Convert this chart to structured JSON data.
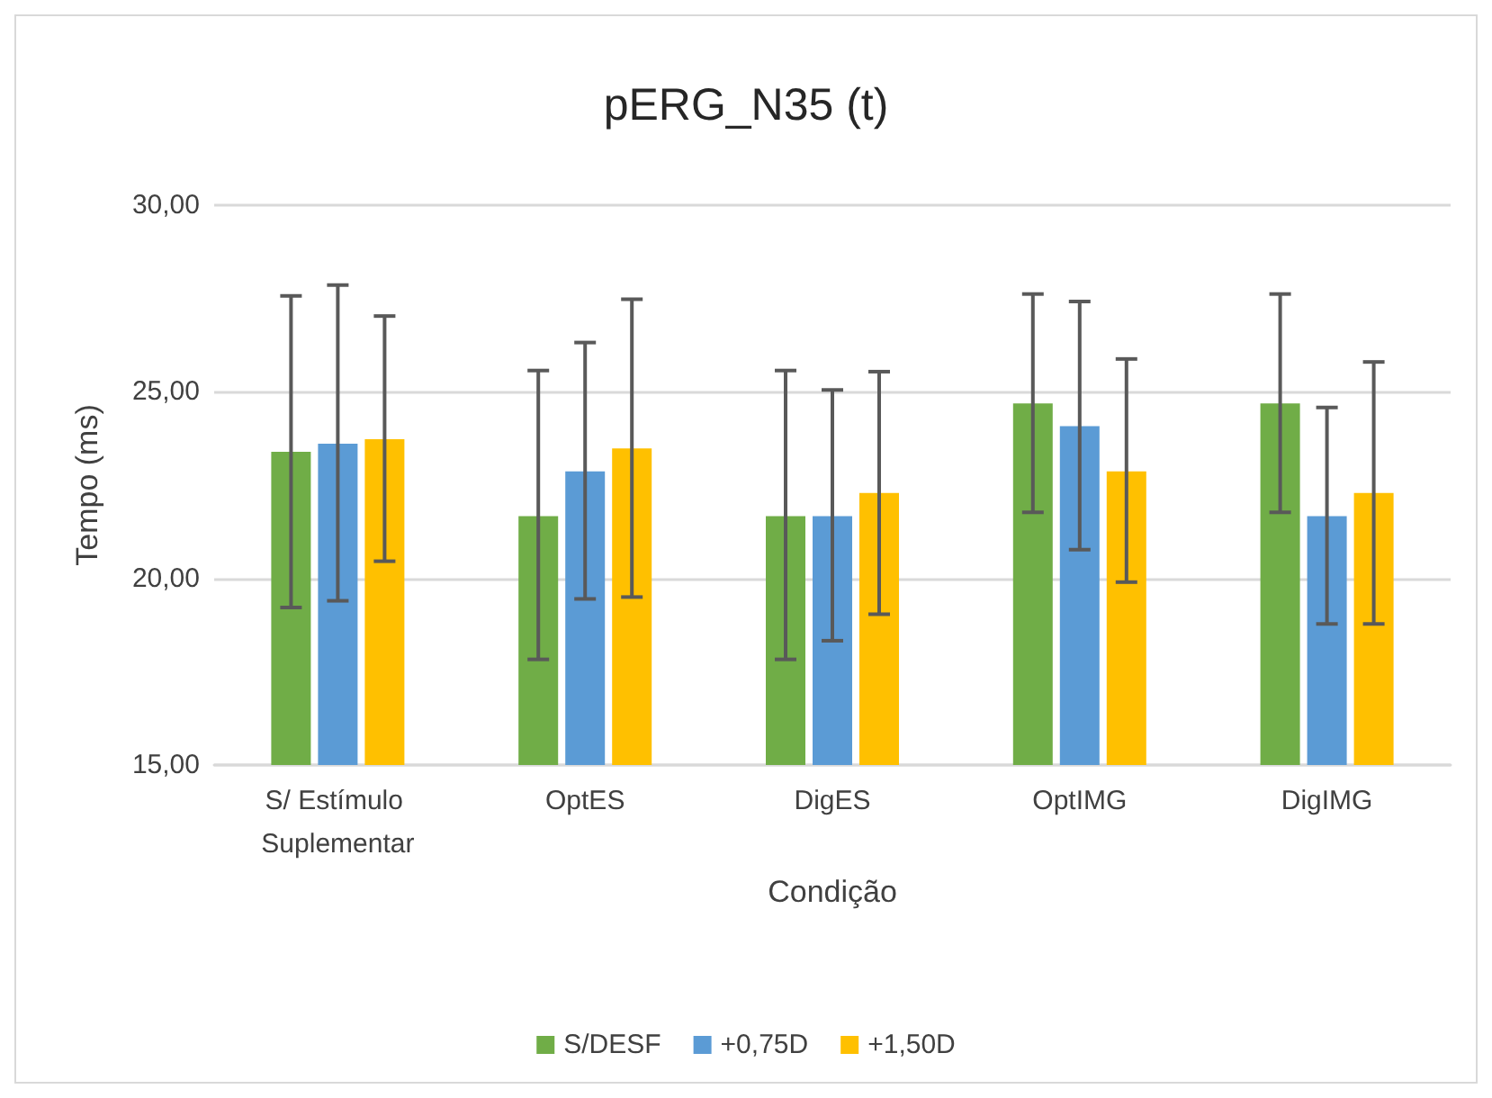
{
  "chart_data": {
    "type": "bar",
    "title": "pERG_N35 (t)",
    "xlabel": "Condição",
    "ylabel": "Tempo (ms)",
    "categories": [
      "S/ Estímulo Suplementar",
      "OptES",
      "DigES",
      "OptIMG",
      "DigIMG"
    ],
    "series": [
      {
        "name": "S/DESF",
        "color": "#70ad47",
        "values": [
          23.39,
          21.67,
          21.67,
          24.69,
          24.69
        ],
        "errors": [
          [
            19.22,
            27.57
          ],
          [
            17.83,
            25.57
          ],
          [
            17.83,
            25.57
          ],
          [
            21.77,
            27.62
          ],
          [
            21.77,
            27.62
          ]
        ]
      },
      {
        "name": "+0,75D",
        "color": "#5b9bd5",
        "values": [
          23.61,
          22.87,
          21.67,
          24.08,
          21.67
        ],
        "errors": [
          [
            19.4,
            27.86
          ],
          [
            19.45,
            26.32
          ],
          [
            18.33,
            25.05
          ],
          [
            20.77,
            27.42
          ],
          [
            18.78,
            24.58
          ]
        ]
      },
      {
        "name": "+1,50D",
        "color": "#ffc000",
        "values": [
          23.73,
          23.48,
          22.29,
          22.87,
          22.29
        ],
        "errors": [
          [
            20.46,
            27.03
          ],
          [
            19.5,
            27.48
          ],
          [
            19.04,
            25.54
          ],
          [
            19.9,
            25.88
          ],
          [
            18.78,
            25.8
          ]
        ]
      }
    ],
    "ylim": [
      15,
      30
    ],
    "yticks": [
      {
        "value": 15,
        "label": "15,00"
      },
      {
        "value": 20,
        "label": "20,00"
      },
      {
        "value": 25,
        "label": "25,00"
      },
      {
        "value": 30,
        "label": "30,00"
      }
    ],
    "grid": "y",
    "legend": "bottom"
  }
}
